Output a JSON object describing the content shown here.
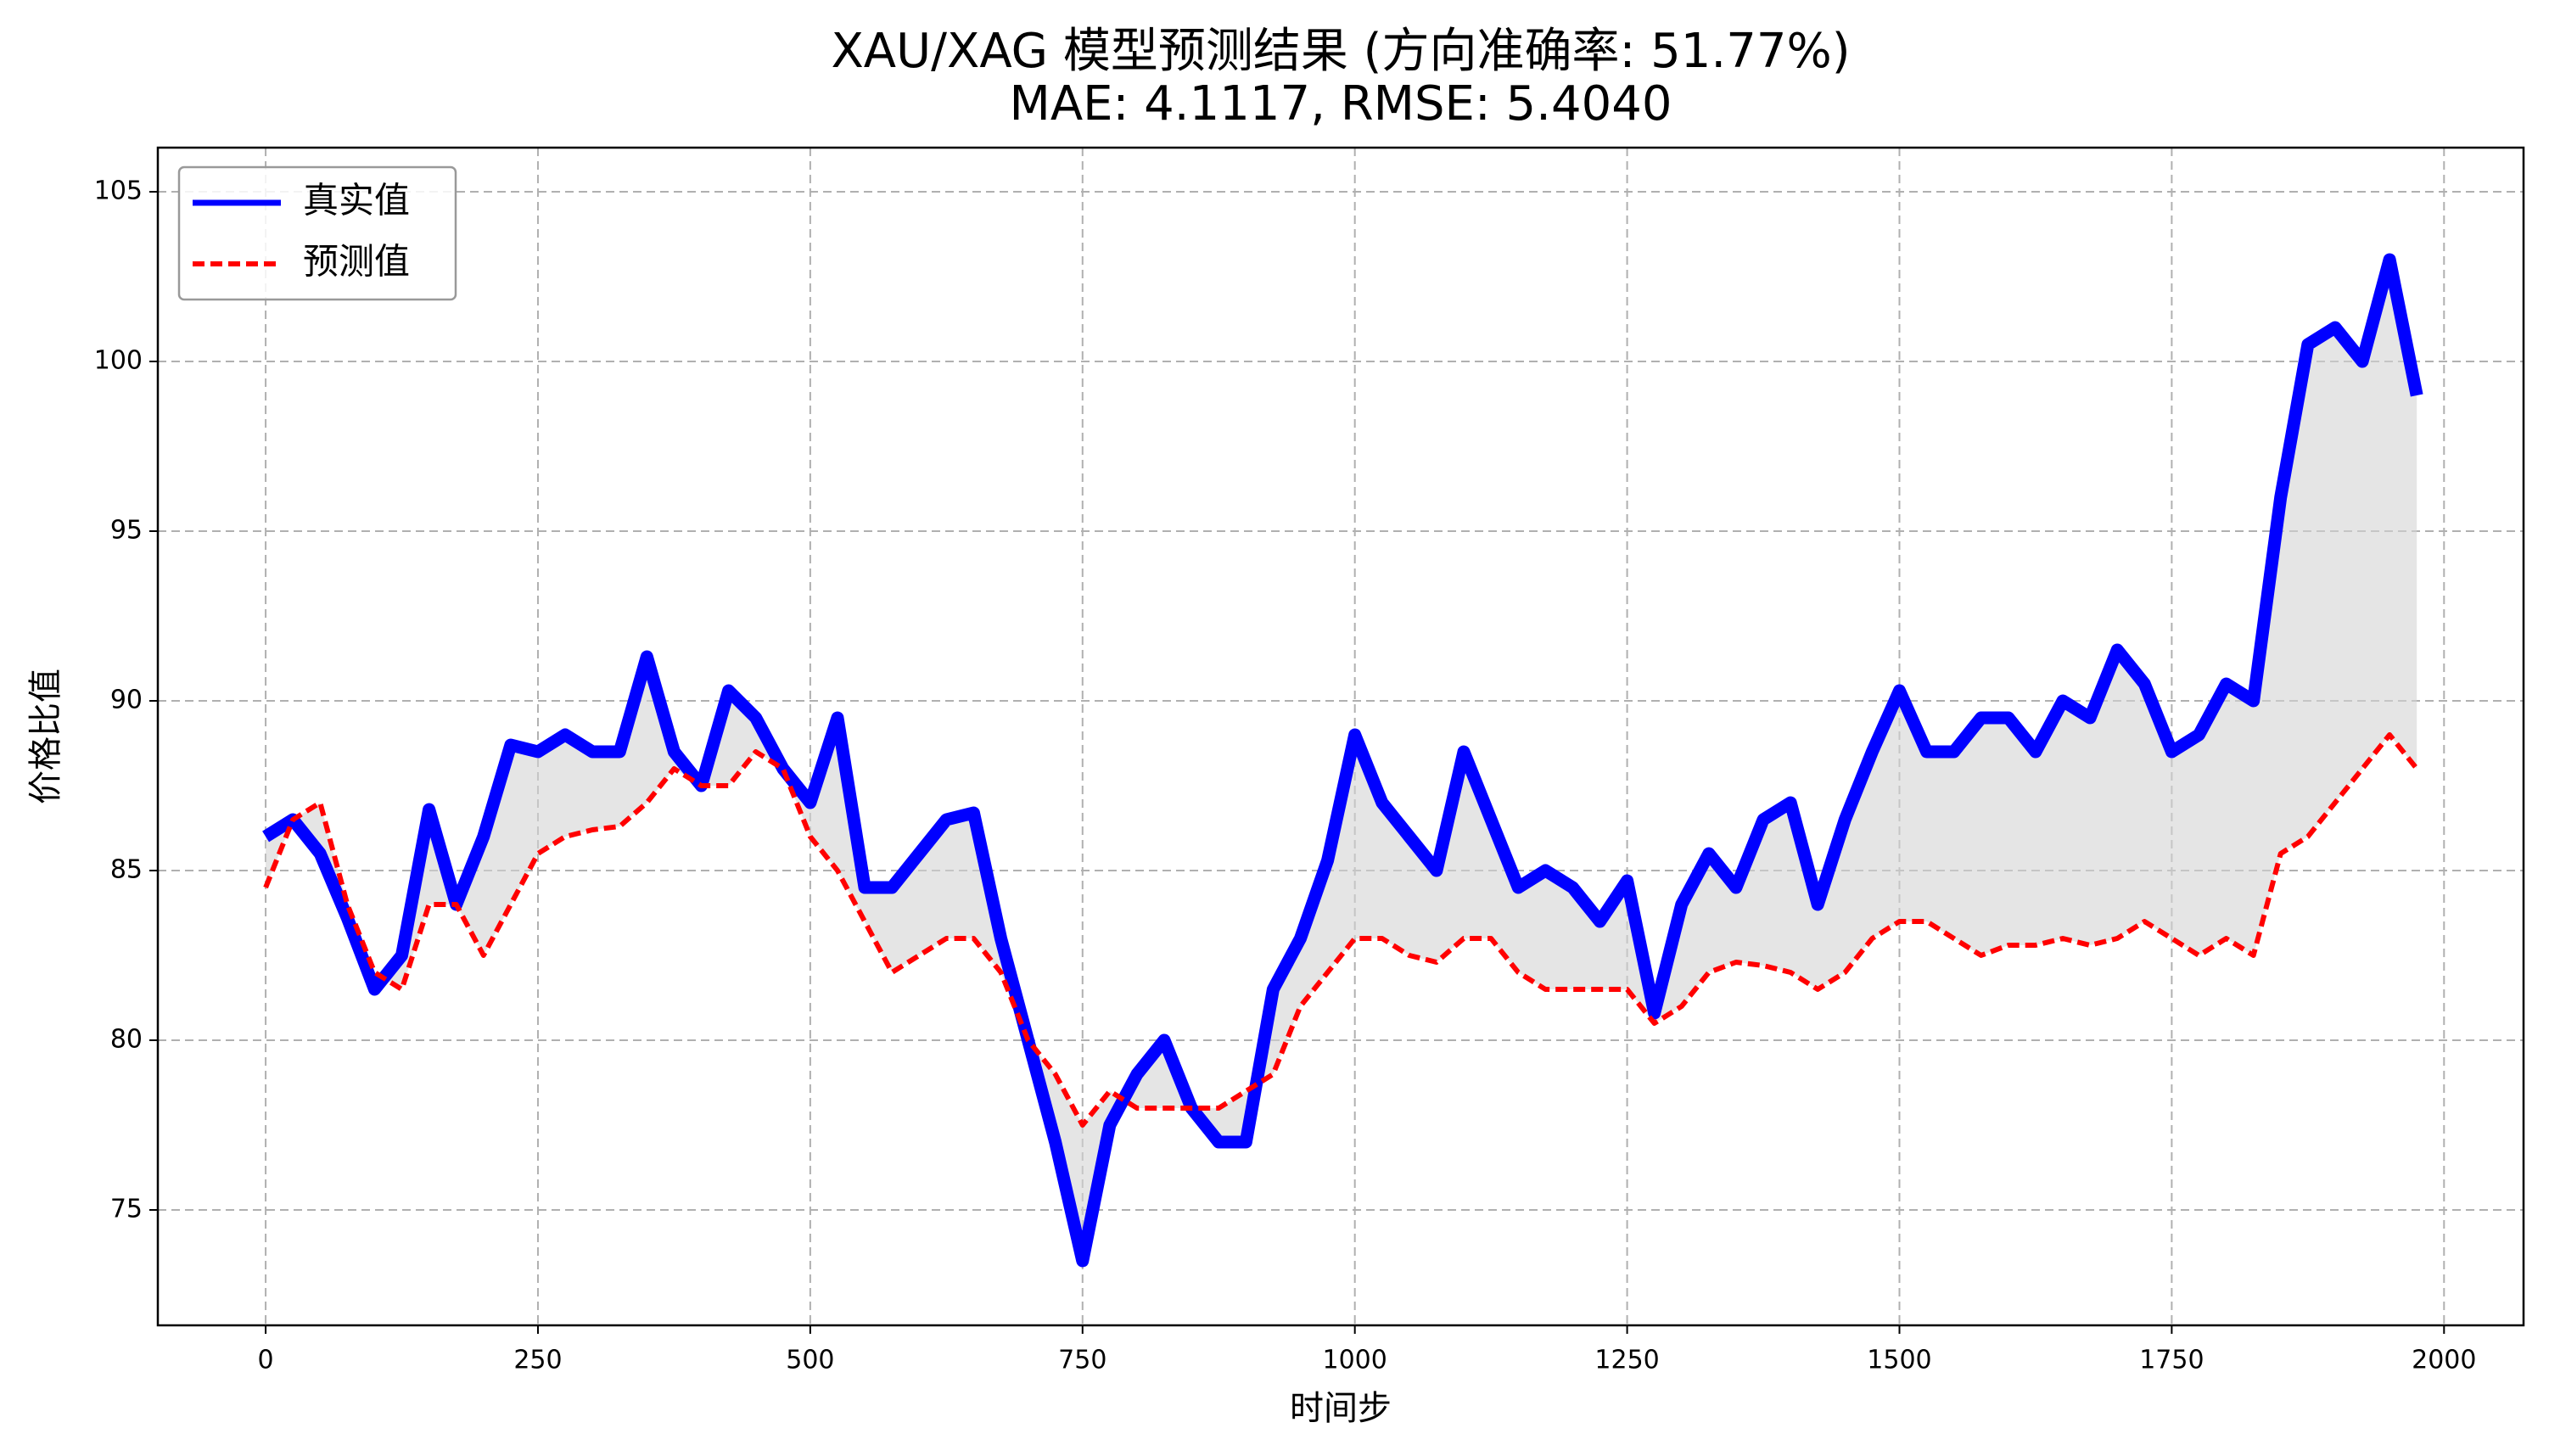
{
  "chart_data": {
    "type": "line",
    "title": "XAU/XAG 模型预测结果 (方向准确率: 51.77%)",
    "subtitle": "MAE: 4.1117, RMSE: 5.4040",
    "x_label": "时间步",
    "y_label": "价格比值",
    "x": [
      0,
      25,
      50,
      75,
      100,
      125,
      150,
      175,
      200,
      225,
      250,
      275,
      300,
      325,
      350,
      375,
      400,
      425,
      450,
      475,
      500,
      525,
      550,
      575,
      600,
      625,
      650,
      675,
      700,
      725,
      750,
      775,
      800,
      825,
      850,
      875,
      900,
      925,
      950,
      975,
      1000,
      1025,
      1050,
      1075,
      1100,
      1125,
      1150,
      1175,
      1200,
      1225,
      1250,
      1275,
      1300,
      1325,
      1350,
      1375,
      1400,
      1425,
      1450,
      1475,
      1500,
      1525,
      1550,
      1575,
      1600,
      1625,
      1650,
      1675,
      1700,
      1725,
      1750,
      1775,
      1800,
      1825,
      1850,
      1875,
      1900,
      1925,
      1950,
      1975
    ],
    "series": [
      {
        "name": "真实值",
        "color": "#0000ff",
        "dashed": false,
        "values": [
          86,
          86.5,
          85.5,
          83.6,
          81.5,
          82.5,
          86.8,
          84,
          86,
          88.7,
          88.5,
          89,
          88.5,
          88.5,
          91.3,
          88.5,
          87.5,
          90.3,
          89.5,
          88,
          87,
          89.5,
          84.5,
          84.5,
          85.5,
          86.5,
          86.7,
          83,
          80,
          77,
          73.5,
          77.5,
          79,
          80,
          78,
          77,
          77,
          81.5,
          83,
          85.3,
          89,
          87,
          86,
          85,
          88.5,
          86.5,
          84.5,
          85,
          84.5,
          83.5,
          84.7,
          80.8,
          84,
          85.5,
          84.5,
          86.5,
          87,
          84,
          86.5,
          88.5,
          90.3,
          88.5,
          88.5,
          89.5,
          89.5,
          88.5,
          90,
          89.5,
          91.5,
          90.5,
          88.5,
          89,
          90.5,
          90,
          96,
          100.5,
          101,
          100,
          103,
          99
        ]
      },
      {
        "name": "预测值",
        "color": "#ff0000",
        "dashed": true,
        "values": [
          84.5,
          86.5,
          87,
          84,
          82,
          81.5,
          84,
          84,
          82.5,
          84,
          85.5,
          86,
          86.2,
          86.3,
          87,
          88,
          87.5,
          87.5,
          88.5,
          88,
          86,
          85,
          83.5,
          82,
          82.5,
          83,
          83,
          82,
          80,
          79,
          77.5,
          78.5,
          78,
          78,
          78,
          78,
          78.5,
          79,
          81,
          82,
          83,
          83,
          82.5,
          82.3,
          83,
          83,
          82,
          81.5,
          81.5,
          81.5,
          81.5,
          80.5,
          81,
          82,
          82.3,
          82.2,
          82,
          81.5,
          82,
          83,
          83.5,
          83.5,
          83,
          82.5,
          82.8,
          82.8,
          83,
          82.8,
          83,
          83.5,
          83,
          82.5,
          83,
          82.5,
          85.5,
          86,
          87,
          88,
          89,
          88
        ]
      }
    ],
    "fill_between": true,
    "fill_color": "#d3d3d3",
    "xlim": [
      -99,
      2073
    ],
    "xticks": [
      0,
      250,
      500,
      750,
      1000,
      1250,
      1500,
      1750,
      2000
    ],
    "ylim": [
      71.6,
      106.3
    ],
    "yticks": [
      75,
      80,
      85,
      90,
      95,
      100,
      105
    ],
    "grid": true,
    "legend": "upper-left"
  }
}
